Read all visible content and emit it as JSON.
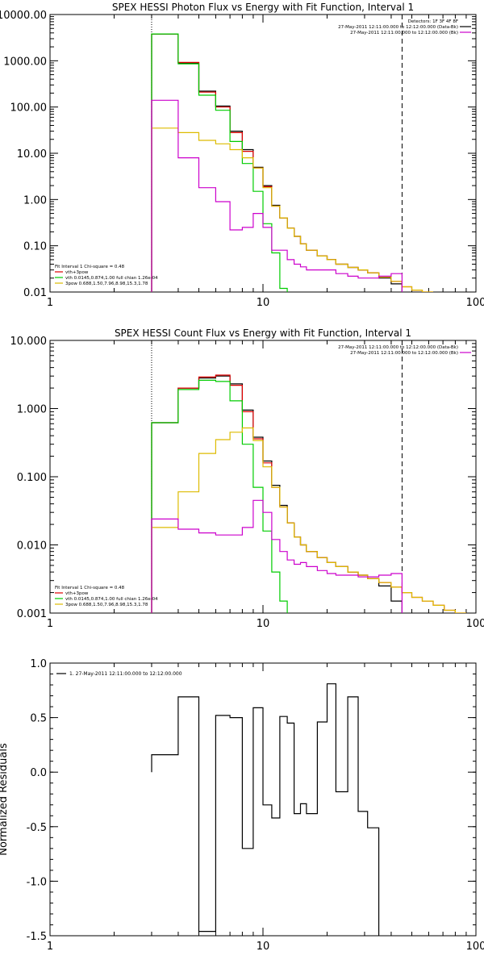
{
  "chart_data": [
    {
      "type": "line",
      "title": "SPEX HESSI Photon Flux vs Energy with Fit Function, Interval 1",
      "xscale": "log",
      "yscale": "log",
      "xlim": [
        1,
        100
      ],
      "ylim": [
        0.01,
        10000
      ],
      "x_ticks": [
        1,
        10,
        100
      ],
      "x_tick_labels": [
        "1",
        "10",
        "100"
      ],
      "y_ticks": [
        0.01,
        0.1,
        1,
        10,
        100,
        1000,
        10000
      ],
      "y_tick_labels": [
        "0.01",
        "0.10",
        "1.00",
        "10.00",
        "100.00",
        "1000.00",
        "10000.00"
      ],
      "vlines": [
        {
          "x": 3,
          "style": "dotted"
        },
        {
          "x": 45,
          "style": "dashed"
        }
      ],
      "legend_top": [
        "Detectors: 1F 3F 4F 8F",
        "27-May-2011 12:11:00.000 to 12:12:00.000 (Data-Bk)",
        "27-May-2011 12:11:00.000 to 12:12:00.000 (Bk)"
      ],
      "legend_top_colors": [
        "#000000",
        "#000000",
        "#cc00cc"
      ],
      "legend_bottom": [
        "Fit Interval  1    Chi-square = 0.48",
        "vth+3pow",
        "vth 0.0145,0.874,1.00  full chian 1.26e-04",
        "3pow 0.688,1.50,7.96,8.98,15.3,1.78"
      ],
      "legend_bottom_colors": [
        "#000000",
        "#dd0000",
        "#00cc00",
        "#ddbb00"
      ],
      "edges": [
        3,
        4,
        5,
        6,
        7,
        8,
        9,
        10,
        11,
        12,
        13,
        14,
        15,
        16,
        18,
        20,
        22,
        25,
        28,
        31,
        35,
        40,
        45,
        50,
        56,
        63
      ],
      "series": [
        {
          "name": "Data-Bk",
          "color": "#000000",
          "values": [
            3800,
            900,
            220,
            105,
            30,
            12,
            5,
            2.0,
            0.75,
            0.4,
            0.24,
            0.16,
            0.11,
            0.08,
            0.06,
            0.05,
            0.04,
            0.034,
            0.03,
            0.026,
            0.02,
            0.015,
            null,
            null,
            null
          ]
        },
        {
          "name": "vth+3pow",
          "color": "#dd0000",
          "values": [
            3800,
            920,
            210,
            100,
            28,
            11,
            4.8,
            1.9,
            0.72,
            0.4,
            0.24,
            0.16,
            0.11,
            0.08,
            0.06,
            0.05,
            0.04,
            0.034,
            0.03,
            0.026,
            0.021,
            0.017,
            0.013,
            0.011,
            0.009
          ]
        },
        {
          "name": "vth",
          "color": "#00cc00",
          "values": [
            3800,
            860,
            180,
            85,
            18,
            6,
            1.5,
            0.3,
            0.07,
            0.012,
            null,
            null,
            null,
            null,
            null,
            null,
            null,
            null,
            null,
            null,
            null,
            null,
            null,
            null,
            null
          ]
        },
        {
          "name": "3pow",
          "color": "#ddbb00",
          "values": [
            35,
            28,
            19,
            16,
            12,
            8,
            4.8,
            1.8,
            0.72,
            0.4,
            0.24,
            0.16,
            0.11,
            0.08,
            0.06,
            0.05,
            0.04,
            0.034,
            0.03,
            0.026,
            0.021,
            0.017,
            0.013,
            0.011,
            0.009
          ]
        },
        {
          "name": "Bk",
          "color": "#cc00cc",
          "values": [
            140,
            8,
            1.8,
            0.9,
            0.22,
            0.25,
            0.5,
            0.25,
            0.08,
            0.08,
            0.05,
            0.04,
            0.035,
            0.03,
            0.03,
            0.03,
            0.025,
            0.022,
            0.02,
            0.02,
            0.022,
            0.025,
            null,
            null,
            null
          ]
        }
      ]
    },
    {
      "type": "line",
      "title": "SPEX HESSI Count Flux vs Energy with Fit Function, Interval 1",
      "xscale": "log",
      "yscale": "log",
      "xlim": [
        1,
        100
      ],
      "ylim": [
        0.001,
        10
      ],
      "x_ticks": [
        1,
        10,
        100
      ],
      "x_tick_labels": [
        "1",
        "10",
        "100"
      ],
      "y_ticks": [
        0.001,
        0.01,
        0.1,
        1,
        10
      ],
      "y_tick_labels": [
        "0.001",
        "0.010",
        "0.100",
        "1.000",
        "10.000"
      ],
      "vlines": [
        {
          "x": 3,
          "style": "dotted"
        },
        {
          "x": 45,
          "style": "dashed"
        }
      ],
      "legend_top": [
        "27-May-2011 12:11:00.000 to 12:12:00.000 (Data-Bk)",
        "27-May-2011 12:11:00.000 to 12:12:00.000 (Bk)"
      ],
      "legend_top_colors": [
        "#000000",
        "#cc00cc"
      ],
      "legend_bottom": [
        "Fit Interval  1    Chi-square = 0.48",
        "vth+3pow",
        "vth 0.0145,0.874,1.00  full chian 1.26e-04",
        "3pow 0.688,1.50,7.96,8.98,15.3,1.78"
      ],
      "legend_bottom_colors": [
        "#000000",
        "#dd0000",
        "#00cc00",
        "#ddbb00"
      ],
      "edges": [
        3,
        4,
        5,
        6,
        7,
        8,
        9,
        10,
        11,
        12,
        13,
        14,
        15,
        16,
        18,
        20,
        22,
        25,
        28,
        31,
        35,
        40,
        45,
        50,
        56,
        63,
        71,
        80,
        90
      ],
      "series": [
        {
          "name": "Data-Bk",
          "color": "#000000",
          "values": [
            0.62,
            2.0,
            2.8,
            3.0,
            2.3,
            0.95,
            0.38,
            0.17,
            0.075,
            0.038,
            0.021,
            0.013,
            0.01,
            0.008,
            0.0065,
            0.0055,
            0.0048,
            0.004,
            0.0036,
            0.0032,
            0.0025,
            0.0015,
            null,
            null,
            null,
            null,
            null,
            null
          ]
        },
        {
          "name": "vth+3pow",
          "color": "#dd0000",
          "values": [
            0.62,
            2.0,
            2.9,
            3.1,
            2.2,
            0.9,
            0.36,
            0.16,
            0.07,
            0.036,
            0.021,
            0.013,
            0.01,
            0.008,
            0.0065,
            0.0055,
            0.0048,
            0.004,
            0.0036,
            0.0032,
            0.0028,
            0.0024,
            0.002,
            0.0017,
            0.0015,
            0.0013,
            0.0011,
            0.001
          ]
        },
        {
          "name": "vth",
          "color": "#00cc00",
          "values": [
            0.62,
            1.9,
            2.6,
            2.5,
            1.3,
            0.3,
            0.07,
            0.016,
            0.004,
            0.0015,
            null,
            null,
            null,
            null,
            null,
            null,
            null,
            null,
            null,
            null,
            null,
            null,
            null,
            null,
            null,
            null,
            null,
            null
          ]
        },
        {
          "name": "3pow",
          "color": "#ddbb00",
          "values": [
            0.018,
            0.06,
            0.22,
            0.35,
            0.45,
            0.52,
            0.34,
            0.14,
            0.07,
            0.036,
            0.021,
            0.013,
            0.01,
            0.008,
            0.0065,
            0.0055,
            0.0048,
            0.004,
            0.0036,
            0.0032,
            0.0028,
            0.0024,
            0.002,
            0.0017,
            0.0015,
            0.0013,
            0.0011,
            0.001
          ]
        },
        {
          "name": "Bk",
          "color": "#cc00cc",
          "values": [
            0.024,
            0.017,
            0.015,
            0.014,
            0.014,
            0.018,
            0.045,
            0.03,
            0.012,
            0.008,
            0.006,
            0.0052,
            0.0055,
            0.0048,
            0.0042,
            0.0038,
            0.0036,
            0.0036,
            0.0034,
            0.0034,
            0.0036,
            0.0038,
            null,
            null,
            null,
            null,
            null,
            null
          ]
        }
      ]
    },
    {
      "type": "line",
      "title": "",
      "xscale": "log",
      "yscale": "linear",
      "xlim": [
        1,
        100
      ],
      "ylim": [
        -1.5,
        1.0
      ],
      "x_ticks": [
        1,
        10,
        100
      ],
      "x_tick_labels": [
        "1",
        "10",
        "100"
      ],
      "y_ticks": [
        -1.5,
        -1.0,
        -0.5,
        0.0,
        0.5,
        1.0
      ],
      "y_tick_labels": [
        "-1.5",
        "-1.0",
        "-0.5",
        "0.0",
        "0.5",
        "1.0"
      ],
      "ylabel": "Normalized Residuals",
      "legend_top": [
        "1. 27-May-2011 12:11:00.000 to 12:12:00.000"
      ],
      "legend_top_colors": [
        "#000000"
      ],
      "edges": [
        3,
        4,
        5,
        6,
        7,
        8,
        9,
        10,
        11,
        12,
        13,
        14,
        15,
        16,
        18,
        20,
        22,
        25,
        28,
        31,
        35,
        40,
        45
      ],
      "series": [
        {
          "name": "1. 27-May-2011 12:11:00.000 to 12:12:00.000",
          "color": "#000000",
          "values": [
            0.16,
            0.69,
            -1.46,
            0.52,
            0.5,
            -0.7,
            0.59,
            -0.3,
            -0.42,
            0.51,
            0.45,
            -0.38,
            -0.29,
            -0.38,
            0.46,
            0.81,
            -0.18,
            0.69,
            -0.36,
            -0.51,
            null,
            null
          ]
        }
      ]
    }
  ]
}
